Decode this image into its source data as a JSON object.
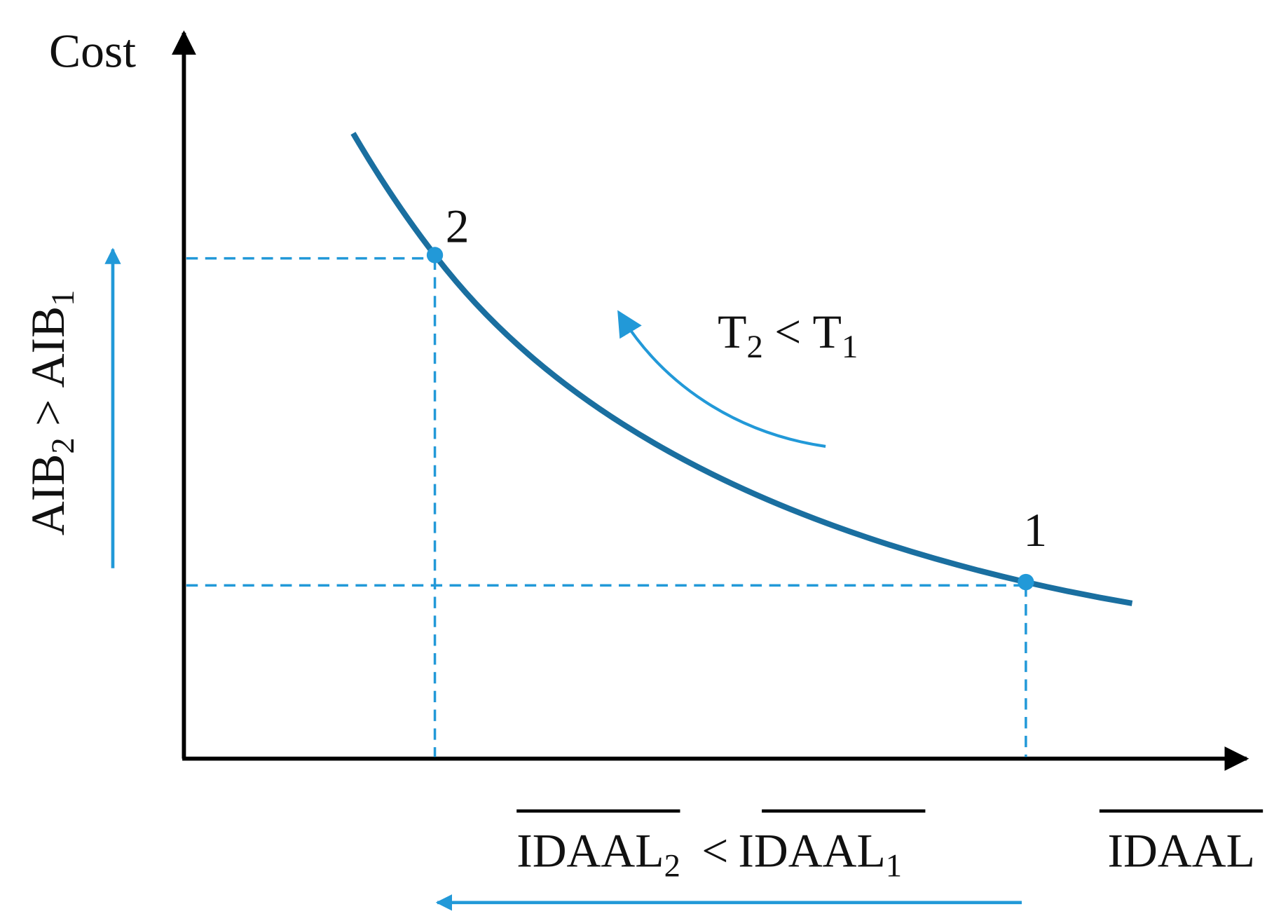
{
  "y_axis_label": "Cost",
  "x_axis_label": "IDAAL",
  "points": [
    {
      "label": "1"
    },
    {
      "label": "2"
    }
  ],
  "curve_annotation": {
    "left": {
      "base": "T",
      "sub": "2"
    },
    "op": "<",
    "right": {
      "base": "T",
      "sub": "1"
    }
  },
  "y_annotation": {
    "left": {
      "base": "AIB",
      "sub": "2"
    },
    "op": ">",
    "right": {
      "base": "AIB",
      "sub": "1"
    }
  },
  "x_annotation": {
    "left": {
      "base": "IDAAL",
      "sub": "2"
    },
    "op": "<",
    "right": {
      "base": "IDAAL",
      "sub": "1"
    }
  }
}
